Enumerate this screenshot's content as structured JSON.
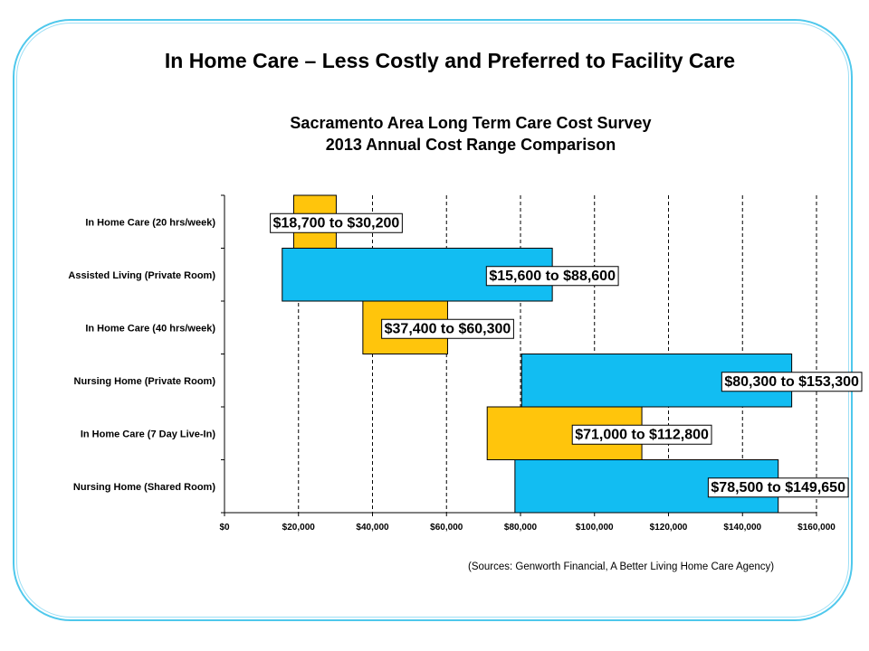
{
  "header": {
    "title": "In Home Care – Less Costly and Preferred to Facility Care"
  },
  "footer": {
    "sources": "(Sources: Genworth Financial, A Better Living Home Care Agency)"
  },
  "colors": {
    "frame": "#4fc8ec",
    "home_care": "#ffc50c",
    "facility": "#12bdf2",
    "gridline": "#000000"
  },
  "chart_data": {
    "type": "bar",
    "orientation": "horizontal-range",
    "title_line1": "Sacramento Area Long Term Care Cost Survey",
    "title_line2": "2013 Annual Cost Range Comparison",
    "xlabel": "",
    "ylabel": "",
    "xlim": [
      0,
      160000
    ],
    "xticks": [
      0,
      20000,
      40000,
      60000,
      80000,
      100000,
      120000,
      140000,
      160000
    ],
    "xtick_labels": [
      "$0",
      "$20,000",
      "$40,000",
      "$60,000",
      "$80,000",
      "$100,000",
      "$120,000",
      "$140,000",
      "$160,000"
    ],
    "grid": "vertical dashed",
    "categories": [
      {
        "name": "In Home Care (20 hrs/week)",
        "low": 18700,
        "high": 30200,
        "group": "home_care",
        "label": "$18,700 to $30,200"
      },
      {
        "name": "Assisted Living (Private Room)",
        "low": 15600,
        "high": 88600,
        "group": "facility",
        "label": "$15,600 to $88,600"
      },
      {
        "name": "In Home Care (40 hrs/week)",
        "low": 37400,
        "high": 60300,
        "group": "home_care",
        "label": "$37,400 to $60,300"
      },
      {
        "name": "Nursing Home (Private Room)",
        "low": 80300,
        "high": 153300,
        "group": "facility",
        "label": "$80,300 to $153,300"
      },
      {
        "name": "In Home Care (7 Day Live-In)",
        "low": 71000,
        "high": 112800,
        "group": "home_care",
        "label": "$71,000 to $112,800"
      },
      {
        "name": "Nursing Home (Shared Room)",
        "low": 78500,
        "high": 149650,
        "group": "facility",
        "label": "$78,500 to $149,650"
      }
    ]
  }
}
